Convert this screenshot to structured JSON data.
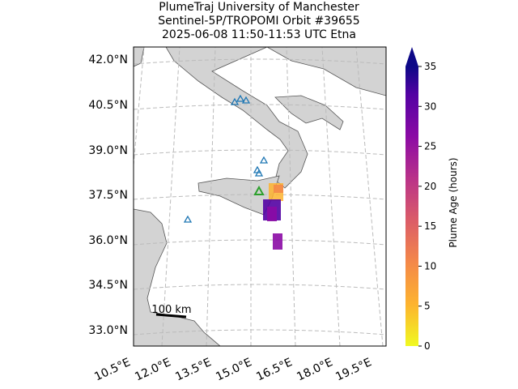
{
  "title": {
    "line1": "PlumeTraj    University of Manchester",
    "line2": "Sentinel-5P/TROPOMI Orbit #39655",
    "line3": "2025-06-08   11:50-11:53 UTC   Etna"
  },
  "map": {
    "lat_labels": [
      "42.0°N",
      "40.5°N",
      "39.0°N",
      "37.5°N",
      "36.0°N",
      "34.5°N",
      "33.0°N"
    ],
    "lon_labels": [
      "10.5°E",
      "12.0°E",
      "13.5°E",
      "15.0°E",
      "16.5°E",
      "18.0°E",
      "19.5°E"
    ],
    "scale_bar": "100 km"
  },
  "colorbar": {
    "label": "Plume Age (hours)",
    "range": [
      0,
      35
    ],
    "ticks": [
      0,
      5,
      10,
      15,
      20,
      25,
      30,
      35
    ]
  }
}
